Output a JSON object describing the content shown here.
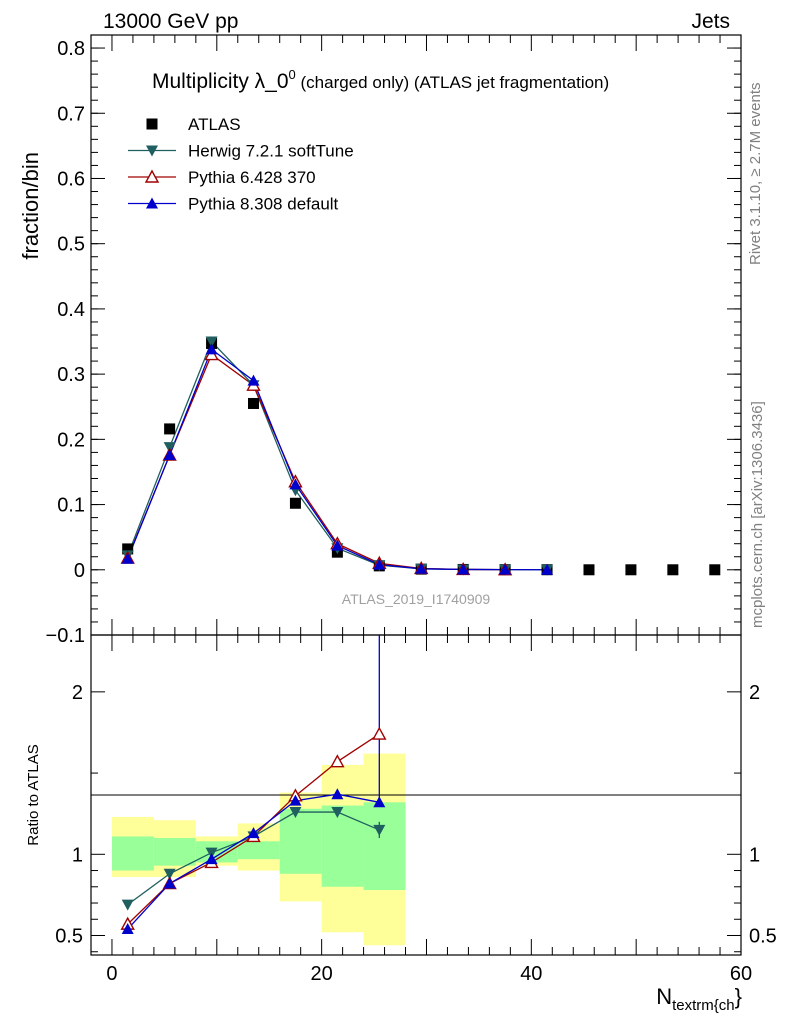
{
  "header": {
    "left": "13000 GeV pp",
    "right": "Jets"
  },
  "side_labels": {
    "top": "Rivet 3.1.10, ≥ 2.7M events",
    "bottom": "mcplots.cern.ch [arXiv:1306.3436]"
  },
  "colors": {
    "atlas": "#000000",
    "herwig": "#1f5f5f",
    "pythia6": "#a00000",
    "pythia8": "#0000cc",
    "band_inner": "#99ff99",
    "band_outer": "#ffff99"
  },
  "chart_data": [
    {
      "type": "line",
      "panel": "main",
      "title_main": "Multiplicity λ_0",
      "title_sup": "0",
      "title_sub": " (charged only) (ATLAS jet fragmentation)",
      "ylabel": "fraction/bin",
      "watermark": "ATLAS_2019_I1740909",
      "xlim": [
        -2,
        60
      ],
      "ylim": [
        -0.1,
        0.82
      ],
      "yticks": [
        -0.1,
        0,
        0.1,
        0.2,
        0.3,
        0.4,
        0.5,
        0.6,
        0.7,
        0.8
      ],
      "ytick_labels": [
        "−0.1",
        "0",
        "0.1",
        "0.2",
        "0.3",
        "0.4",
        "0.5",
        "0.6",
        "0.7",
        "0.8"
      ],
      "legend": {
        "position": "top-left",
        "entries": [
          "ATLAS",
          "Herwig 7.2.1 softTune",
          "Pythia 6.428 370",
          "Pythia 8.308 default"
        ]
      },
      "x": [
        1.5,
        5.5,
        9.5,
        13.5,
        17.5,
        21.5,
        25.5,
        29.5,
        33.5,
        37.5,
        41.5,
        45.5,
        49.5,
        53.5,
        57.5
      ],
      "series": [
        {
          "name": "ATLAS",
          "marker": "square",
          "x": [
            1.5,
            5.5,
            9.5,
            13.5,
            17.5,
            21.5,
            25.5,
            29.5,
            33.5,
            37.5,
            41.5,
            45.5,
            49.5,
            53.5,
            57.5
          ],
          "values": [
            0.032,
            0.216,
            0.347,
            0.255,
            0.102,
            0.027,
            0.006,
            0.001,
            0.0005,
            0.0002,
            0.0001,
            0.0,
            0.0,
            0.0,
            0.0
          ]
        },
        {
          "name": "Herwig 7.2.1 softTune",
          "marker": "triangle-down",
          "x": [
            1.5,
            5.5,
            9.5,
            13.5,
            17.5,
            21.5,
            25.5,
            29.5,
            33.5,
            37.5,
            41.5
          ],
          "values": [
            0.022,
            0.188,
            0.35,
            0.283,
            0.122,
            0.033,
            0.007,
            0.0015,
            0.0005,
            0.0002,
            0.0001
          ]
        },
        {
          "name": "Pythia 6.428 370",
          "marker": "triangle-up-open",
          "x": [
            1.5,
            5.5,
            9.5,
            13.5,
            17.5,
            21.5,
            25.5,
            29.5,
            33.5,
            37.5
          ],
          "values": [
            0.018,
            0.176,
            0.33,
            0.283,
            0.135,
            0.04,
            0.01,
            0.002,
            0.0005,
            0.0002
          ]
        },
        {
          "name": "Pythia 8.308 default",
          "marker": "triangle-up",
          "x": [
            1.5,
            5.5,
            9.5,
            13.5,
            17.5,
            21.5,
            25.5,
            29.5,
            33.5,
            37.5,
            41.5
          ],
          "values": [
            0.017,
            0.176,
            0.338,
            0.29,
            0.131,
            0.037,
            0.008,
            0.0015,
            0.0005,
            0.0002,
            0.0001
          ]
        }
      ]
    },
    {
      "type": "line",
      "panel": "ratio",
      "ylabel": "Ratio to ATLAS",
      "xlabel_main": "N",
      "xlabel_sub": "textrm{ch",
      "xlabel_tail": "}",
      "xlim": [
        -2,
        60
      ],
      "ylim": [
        0.38,
        2.35
      ],
      "xticks": [
        0,
        20,
        40,
        60
      ],
      "xtick_labels": [
        "0",
        "20",
        "40",
        "60"
      ],
      "yticks": [
        0.5,
        1,
        2
      ],
      "ytick_labels": [
        "0.5",
        "1",
        "2"
      ],
      "bands": {
        "bin_edges": [
          0,
          4,
          8,
          12,
          16,
          20,
          24,
          28
        ],
        "inner_lo": [
          0.9,
          0.93,
          0.95,
          0.97,
          0.88,
          0.8,
          0.78
        ],
        "inner_hi": [
          1.11,
          1.1,
          1.08,
          1.08,
          1.28,
          1.3,
          1.32
        ],
        "outer_lo": [
          0.86,
          0.86,
          0.93,
          0.9,
          0.71,
          0.52,
          0.44
        ],
        "outer_hi": [
          1.23,
          1.21,
          1.11,
          1.19,
          1.38,
          1.55,
          1.62
        ]
      },
      "series": [
        {
          "name": "Herwig 7.2.1 softTune",
          "x": [
            1.5,
            5.5,
            9.5,
            13.5,
            17.5,
            21.5,
            25.5
          ],
          "values": [
            0.69,
            0.88,
            1.01,
            1.11,
            1.26,
            1.26,
            1.15
          ],
          "err_last": 0.05
        },
        {
          "name": "Pythia 6.428 370",
          "x": [
            1.5,
            5.5,
            9.5,
            13.5,
            17.5,
            21.5,
            25.5
          ],
          "values": [
            0.57,
            0.82,
            0.95,
            1.11,
            1.36,
            1.57,
            1.74
          ]
        },
        {
          "name": "Pythia 8.308 default",
          "x": [
            1.5,
            5.5,
            9.5,
            13.5,
            17.5,
            21.5,
            25.5
          ],
          "values": [
            0.54,
            0.82,
            0.97,
            1.13,
            1.33,
            1.37,
            1.32
          ],
          "err_last_hi": 1.2
        }
      ]
    }
  ]
}
